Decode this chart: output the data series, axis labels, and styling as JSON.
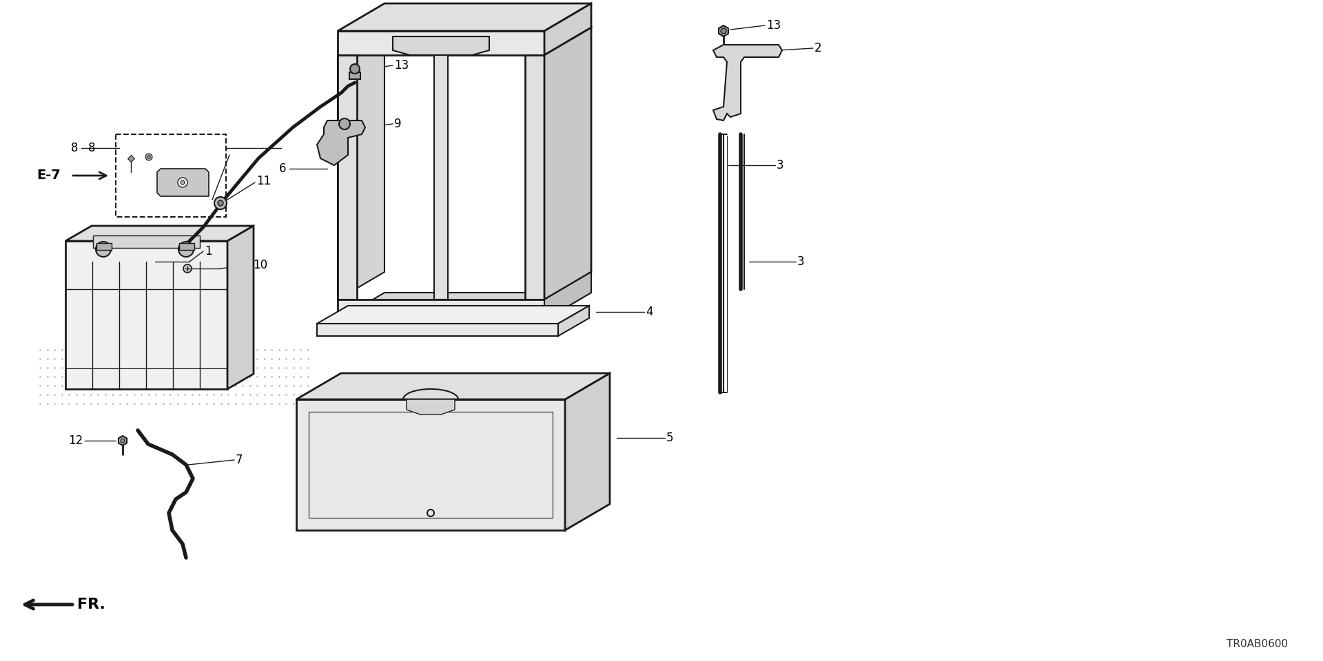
{
  "bg_color": "#ffffff",
  "line_color": "#1a1a1a",
  "text_color": "#000000",
  "diagram_code": "TR0AB0600",
  "ref_label": "E-7",
  "fr_label": "FR.",
  "figw": 19.2,
  "figh": 9.6,
  "dpi": 100
}
